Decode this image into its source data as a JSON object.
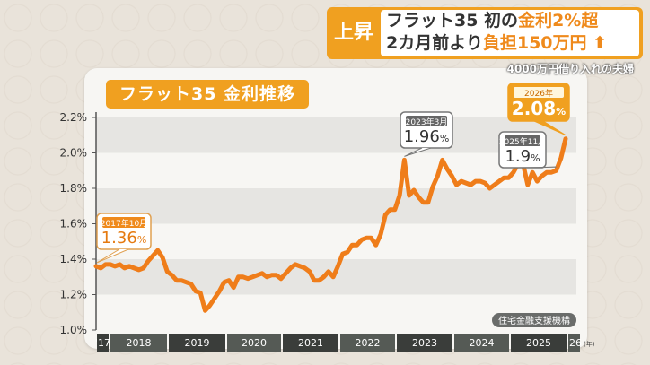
{
  "headline": {
    "tag": "上昇",
    "line1_a": "フラット35 初の",
    "line1_b": "金利2%超",
    "line2_a": "2カ月前より",
    "line2_b": "負担150万円",
    "arrow_icon": "up-arrow-icon",
    "subtitle": "4000万円借り入れの夫婦"
  },
  "chart_data": {
    "type": "line",
    "title": "フラット35 金利推移",
    "source": "住宅金融支援機構",
    "ylim": [
      1.0,
      2.2
    ],
    "yticks": [
      "1.0%",
      "1.2%",
      "1.4%",
      "1.6%",
      "1.8%",
      "2.0%",
      "2.2%"
    ],
    "xticks": [
      "'17",
      "2018",
      "2019",
      "2020",
      "2021",
      "2022",
      "2023",
      "2024",
      "2025",
      "'26"
    ],
    "xunit": "(年)",
    "grid": "horizontal bands",
    "color": "#ef7d1a",
    "start": "2017-10",
    "values": [
      1.36,
      1.35,
      1.37,
      1.37,
      1.36,
      1.37,
      1.35,
      1.36,
      1.35,
      1.34,
      1.35,
      1.39,
      1.42,
      1.45,
      1.41,
      1.33,
      1.31,
      1.28,
      1.28,
      1.27,
      1.26,
      1.22,
      1.21,
      1.11,
      1.14,
      1.18,
      1.22,
      1.27,
      1.28,
      1.24,
      1.3,
      1.3,
      1.29,
      1.3,
      1.31,
      1.32,
      1.3,
      1.31,
      1.31,
      1.29,
      1.32,
      1.35,
      1.37,
      1.36,
      1.35,
      1.33,
      1.28,
      1.28,
      1.3,
      1.33,
      1.3,
      1.36,
      1.43,
      1.44,
      1.48,
      1.48,
      1.51,
      1.52,
      1.52,
      1.48,
      1.54,
      1.65,
      1.68,
      1.68,
      1.76,
      1.96,
      1.76,
      1.79,
      1.75,
      1.72,
      1.72,
      1.81,
      1.87,
      1.96,
      1.91,
      1.87,
      1.82,
      1.84,
      1.83,
      1.82,
      1.84,
      1.84,
      1.83,
      1.8,
      1.82,
      1.84,
      1.86,
      1.86,
      1.89,
      1.94,
      1.94,
      1.82,
      1.89,
      1.84,
      1.87,
      1.89,
      1.89,
      1.9,
      1.97,
      2.08
    ],
    "annotations": [
      {
        "date": "2017年10月",
        "value": "1.36",
        "unit": "%",
        "index": 0
      },
      {
        "date": "2023年3月",
        "value": "1.96",
        "unit": "%",
        "index": 65
      },
      {
        "date": "2025年11月",
        "value": "1.9",
        "unit": "%",
        "index": 97
      },
      {
        "date": "2026年",
        "value": "2.08",
        "unit": "%",
        "index": 99
      }
    ]
  }
}
